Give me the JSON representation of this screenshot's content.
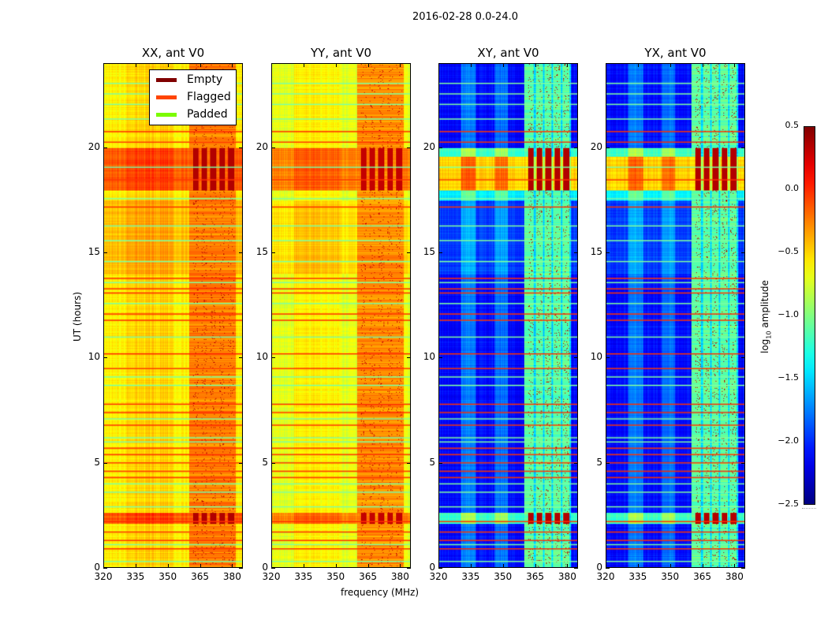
{
  "suptitle": "2016-02-28 0.0-24.0",
  "chart_data": {
    "type": "heatmap",
    "xlabel": "frequency (MHz)",
    "ylabel": "UT (hours)",
    "xlim": [
      320,
      385
    ],
    "ylim": [
      0,
      24
    ],
    "xticks": [
      "320",
      "335",
      "350",
      "365",
      "380"
    ],
    "xtick_values": [
      320,
      335,
      350,
      365,
      380
    ],
    "yticks": [
      "0",
      "5",
      "10",
      "15",
      "20"
    ],
    "ytick_values": [
      0,
      5,
      10,
      15,
      20
    ],
    "panels": [
      {
        "title": "XX, ant V0",
        "base": -0.6,
        "band_level": -0.25,
        "peak_level": 0.35
      },
      {
        "title": "YY, ant V0",
        "base": -0.7,
        "band_level": -0.3,
        "peak_level": 0.3
      },
      {
        "title": "XY, ant V0",
        "base": -2.1,
        "band_level": -1.1,
        "peak_level": 0.35
      },
      {
        "title": "YX, ant V0",
        "base": -2.1,
        "band_level": -1.1,
        "peak_level": 0.35
      }
    ],
    "rfi_band_mhz": [
      360,
      382
    ],
    "bright_hours": [
      [
        2.1,
        2.6
      ],
      [
        18.0,
        20.0
      ]
    ],
    "flagged_hours": [
      0.9,
      1.3,
      1.7,
      2.2,
      4.3,
      4.6,
      5.0,
      5.4,
      5.7,
      6.8,
      7.4,
      7.8,
      9.5,
      10.2,
      11.8,
      12.1,
      13.1,
      13.3,
      13.8,
      17.2,
      18.5,
      20.3,
      20.8
    ],
    "padded_hours": [
      0.3,
      1.1,
      2.9,
      3.6,
      4.0,
      6.0,
      6.2,
      7.1,
      8.7,
      9.1,
      11.0,
      12.6,
      13.6,
      14.6,
      15.6,
      16.3,
      17.6,
      19.1,
      21.4,
      22.1,
      22.6,
      23.1
    ],
    "legend": {
      "placement": "top-right",
      "entries": [
        {
          "label": "Empty",
          "color": "#800000"
        },
        {
          "label": "Flagged",
          "color": "#ff4500"
        },
        {
          "label": "Padded",
          "color": "#7cfc00"
        }
      ]
    },
    "colorbar": {
      "label_prefix": "log",
      "label_sub": "10",
      "label_suffix": " amplitude",
      "range": [
        -2.5,
        0.5
      ],
      "ticks": [
        "0.5",
        "0.0",
        "−0.5",
        "−1.0",
        "−1.5",
        "−2.0",
        "−2.5"
      ],
      "tick_values": [
        0.5,
        0.0,
        -0.5,
        -1.0,
        -1.5,
        -2.0,
        -2.5
      ],
      "colormap": "jet"
    }
  }
}
